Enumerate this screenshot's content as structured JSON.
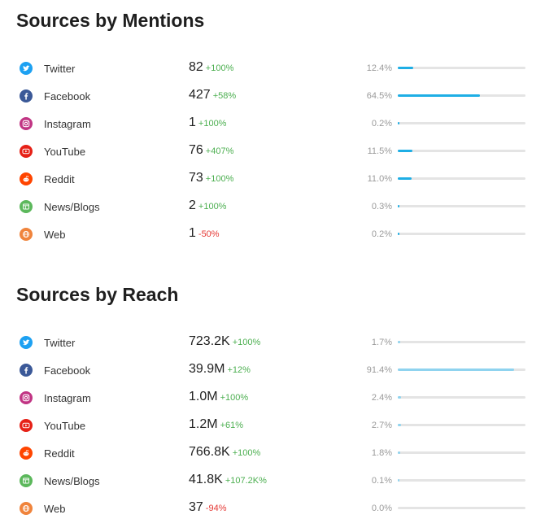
{
  "colors": {
    "positive": "#4caf50",
    "negative": "#e53935",
    "mentions_bar": "#1eaee5",
    "reach_bar": "#8fd3ef"
  },
  "sources": [
    {
      "key": "twitter",
      "name": "Twitter",
      "icon": "twitter-icon",
      "color": "#1da1f2"
    },
    {
      "key": "facebook",
      "name": "Facebook",
      "icon": "facebook-icon",
      "color": "#3b5998"
    },
    {
      "key": "instagram",
      "name": "Instagram",
      "icon": "instagram-icon",
      "color": "#c13584"
    },
    {
      "key": "youtube",
      "name": "YouTube",
      "icon": "youtube-icon",
      "color": "#e62117"
    },
    {
      "key": "reddit",
      "name": "Reddit",
      "icon": "reddit-icon",
      "color": "#ff4500"
    },
    {
      "key": "news",
      "name": "News/Blogs",
      "icon": "news-icon",
      "color": "#5cb85c"
    },
    {
      "key": "web",
      "name": "Web",
      "icon": "globe-icon",
      "color": "#f0843c"
    }
  ],
  "mentions": {
    "title": "Sources by Mentions",
    "rows": [
      {
        "value": "82",
        "change": "+100%",
        "trend": "pos",
        "percent": "12.4%",
        "share": 12.4
      },
      {
        "value": "427",
        "change": "+58%",
        "trend": "pos",
        "percent": "64.5%",
        "share": 64.5
      },
      {
        "value": "1",
        "change": "+100%",
        "trend": "pos",
        "percent": "0.2%",
        "share": 0.2
      },
      {
        "value": "76",
        "change": "+407%",
        "trend": "pos",
        "percent": "11.5%",
        "share": 11.5
      },
      {
        "value": "73",
        "change": "+100%",
        "trend": "pos",
        "percent": "11.0%",
        "share": 11.0
      },
      {
        "value": "2",
        "change": "+100%",
        "trend": "pos",
        "percent": "0.3%",
        "share": 0.3
      },
      {
        "value": "1",
        "change": "-50%",
        "trend": "neg",
        "percent": "0.2%",
        "share": 0.2
      }
    ]
  },
  "reach": {
    "title": "Sources by Reach",
    "rows": [
      {
        "value": "723.2K",
        "change": "+100%",
        "trend": "pos",
        "percent": "1.7%",
        "share": 1.7
      },
      {
        "value": "39.9M",
        "change": "+12%",
        "trend": "pos",
        "percent": "91.4%",
        "share": 91.4
      },
      {
        "value": "1.0M",
        "change": "+100%",
        "trend": "pos",
        "percent": "2.4%",
        "share": 2.4
      },
      {
        "value": "1.2M",
        "change": "+61%",
        "trend": "pos",
        "percent": "2.7%",
        "share": 2.7
      },
      {
        "value": "766.8K",
        "change": "+100%",
        "trend": "pos",
        "percent": "1.8%",
        "share": 1.8
      },
      {
        "value": "41.8K",
        "change": "+107.2K%",
        "trend": "pos",
        "percent": "0.1%",
        "share": 0.1
      },
      {
        "value": "37",
        "change": "-94%",
        "trend": "neg",
        "percent": "0.0%",
        "share": 0.0
      }
    ]
  }
}
